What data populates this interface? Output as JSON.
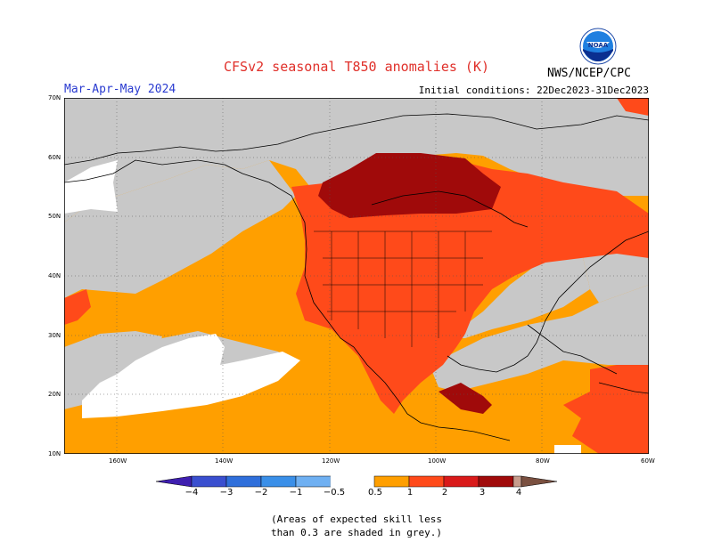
{
  "title": "CFSv2 seasonal T850 anomalies (K)",
  "season": "Mar-Apr-May 2024",
  "initial_conditions": "Initial conditions: 22Dec2023-31Dec2023",
  "agency": "NWS/NCEP/CPC",
  "logo_text": "NOAA",
  "note_line1": "(Areas of expected skill less",
  "note_line2": "than 0.3 are shaded in grey.)",
  "lat_labels": [
    "70N",
    "60N",
    "50N",
    "40N",
    "30N",
    "20N",
    "10N"
  ],
  "lon_labels": [
    "160W",
    "140W",
    "120W",
    "100W",
    "80W",
    "60W"
  ],
  "colorbar": {
    "labels": [
      "−4",
      "−3",
      "−2",
      "−1",
      "−0.5",
      "0.5",
      "1",
      "2",
      "3",
      "4"
    ],
    "colors": {
      "neg4": "#3f1fb0",
      "neg3": "#3a4fcf",
      "neg2": "#2f7fe0",
      "neg1": "#5aa3f0",
      "neg05": "#8cc4f5",
      "white": "#ffffff",
      "pos05": "#ff9f00",
      "pos1": "#ff4a1a",
      "pos2": "#d91a1a",
      "pos3": "#a00a0a",
      "pos4": "#c79c8c",
      "max": "#7a5040"
    }
  },
  "map_colors": {
    "grey": "#c8c8c8",
    "white": "#ffffff",
    "orange": "#ff9f00",
    "red": "#ff4a1a",
    "darkred": "#a00a0a",
    "coast": "#000000"
  }
}
